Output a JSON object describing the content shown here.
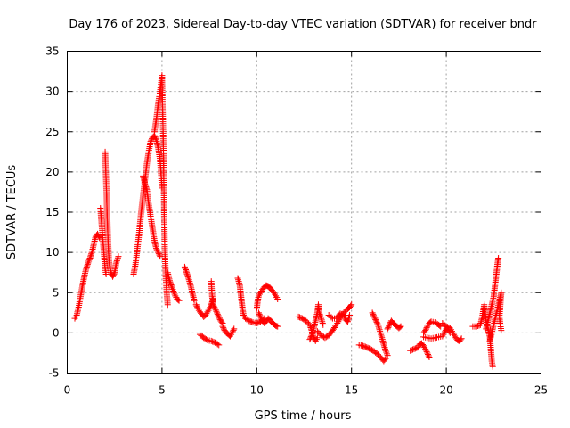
{
  "chart_data": {
    "type": "scatter",
    "title": "Day 176 of 2023, Sidereal Day-to-day VTEC variation (SDTVAR) for receiver bndr",
    "xlabel": "GPS time / hours",
    "ylabel": "SDTVAR / TECUs",
    "xlim": [
      0,
      25
    ],
    "ylim": [
      -5,
      35
    ],
    "xticks": [
      0,
      5,
      10,
      15,
      20,
      25
    ],
    "yticks": [
      -5,
      0,
      5,
      10,
      15,
      20,
      25,
      30,
      35
    ],
    "grid": true,
    "marker": "+",
    "series_color": "#ff0000",
    "segments": [
      [
        [
          0.4,
          1.8
        ],
        [
          0.5,
          2.2
        ],
        [
          0.6,
          3.2
        ],
        [
          0.7,
          4.5
        ],
        [
          0.8,
          5.8
        ],
        [
          0.9,
          7.0
        ],
        [
          1.0,
          8.0
        ],
        [
          1.1,
          8.7
        ],
        [
          1.2,
          9.3
        ],
        [
          1.3,
          10.0
        ],
        [
          1.4,
          11.0
        ],
        [
          1.5,
          12.0
        ],
        [
          1.6,
          12.3
        ],
        [
          1.7,
          11.8
        ]
      ],
      [
        [
          1.75,
          15.5
        ],
        [
          1.8,
          14.0
        ],
        [
          1.85,
          12.5
        ],
        [
          1.9,
          11.0
        ],
        [
          1.95,
          9.5
        ],
        [
          2.0,
          8.0
        ],
        [
          2.05,
          7.3
        ]
      ],
      [
        [
          2.0,
          22.5
        ],
        [
          2.02,
          21.0
        ],
        [
          2.05,
          19.0
        ],
        [
          2.08,
          17.0
        ],
        [
          2.1,
          15.0
        ],
        [
          2.13,
          13.0
        ],
        [
          2.16,
          11.0
        ],
        [
          2.2,
          9.0
        ],
        [
          2.3,
          7.5
        ],
        [
          2.4,
          7.0
        ],
        [
          2.5,
          7.5
        ],
        [
          2.6,
          8.8
        ],
        [
          2.7,
          9.5
        ]
      ],
      [
        [
          3.5,
          7.3
        ],
        [
          3.6,
          8.5
        ],
        [
          3.7,
          10.5
        ],
        [
          3.8,
          12.5
        ],
        [
          3.9,
          15.0
        ],
        [
          4.0,
          17.0
        ],
        [
          4.1,
          19.0
        ],
        [
          4.2,
          21.0
        ],
        [
          4.3,
          22.5
        ],
        [
          4.4,
          23.8
        ],
        [
          4.5,
          24.3
        ],
        [
          4.6,
          24.5
        ],
        [
          4.7,
          24.0
        ],
        [
          4.8,
          23.0
        ],
        [
          4.9,
          21.5
        ],
        [
          5.0,
          18.0
        ]
      ],
      [
        [
          4.0,
          19.5
        ],
        [
          4.1,
          18.5
        ],
        [
          4.2,
          17.8
        ],
        [
          4.3,
          16.0
        ],
        [
          4.4,
          14.5
        ],
        [
          4.5,
          13.0
        ],
        [
          4.6,
          11.5
        ],
        [
          4.7,
          10.5
        ],
        [
          4.8,
          10.0
        ],
        [
          4.9,
          9.5
        ]
      ],
      [
        [
          4.6,
          25.0
        ],
        [
          4.7,
          26.5
        ],
        [
          4.8,
          28.5
        ],
        [
          4.9,
          30.0
        ],
        [
          5.0,
          32.0
        ],
        [
          5.02,
          29.0
        ],
        [
          5.05,
          26.0
        ],
        [
          5.08,
          22.0
        ],
        [
          5.1,
          18.0
        ],
        [
          5.12,
          14.0
        ],
        [
          5.15,
          10.0
        ],
        [
          5.2,
          7.0
        ],
        [
          5.25,
          5.0
        ],
        [
          5.3,
          3.5
        ]
      ],
      [
        [
          5.3,
          7.5
        ],
        [
          5.4,
          6.5
        ],
        [
          5.5,
          5.8
        ],
        [
          5.6,
          5.2
        ],
        [
          5.7,
          4.6
        ],
        [
          5.8,
          4.2
        ],
        [
          5.9,
          4.0
        ]
      ],
      [
        [
          6.2,
          8.2
        ],
        [
          6.3,
          7.5
        ],
        [
          6.4,
          6.8
        ],
        [
          6.5,
          6.0
        ],
        [
          6.6,
          5.0
        ],
        [
          6.7,
          4.0
        ]
      ],
      [
        [
          6.8,
          3.5
        ],
        [
          6.9,
          3.0
        ],
        [
          7.0,
          2.6
        ],
        [
          7.1,
          2.3
        ],
        [
          7.2,
          2.0
        ],
        [
          7.3,
          2.2
        ],
        [
          7.4,
          2.6
        ],
        [
          7.5,
          3.0
        ],
        [
          7.6,
          3.5
        ],
        [
          7.7,
          4.2
        ]
      ],
      [
        [
          7.0,
          -0.2
        ],
        [
          7.2,
          -0.6
        ],
        [
          7.4,
          -0.9
        ],
        [
          7.6,
          -1.0
        ],
        [
          7.8,
          -1.2
        ],
        [
          8.0,
          -1.5
        ]
      ],
      [
        [
          7.6,
          6.4
        ],
        [
          7.62,
          5.5
        ],
        [
          7.65,
          4.5
        ],
        [
          7.7,
          3.5
        ],
        [
          7.8,
          3.0
        ],
        [
          7.9,
          2.5
        ],
        [
          8.0,
          2.0
        ],
        [
          8.1,
          1.5
        ],
        [
          8.2,
          1.2
        ]
      ],
      [
        [
          8.2,
          0.8
        ],
        [
          8.3,
          0.3
        ],
        [
          8.4,
          0.0
        ],
        [
          8.5,
          -0.2
        ],
        [
          8.6,
          -0.4
        ],
        [
          8.7,
          0.0
        ],
        [
          8.8,
          0.5
        ]
      ],
      [
        [
          9.0,
          6.8
        ],
        [
          9.1,
          6.0
        ],
        [
          9.15,
          5.0
        ],
        [
          9.2,
          4.0
        ],
        [
          9.25,
          3.0
        ],
        [
          9.3,
          2.2
        ],
        [
          9.4,
          1.8
        ],
        [
          9.6,
          1.5
        ],
        [
          9.8,
          1.3
        ],
        [
          10.0,
          1.2
        ],
        [
          10.2,
          1.4
        ],
        [
          10.4,
          1.8
        ]
      ],
      [
        [
          10.0,
          3.0
        ],
        [
          10.05,
          4.0
        ],
        [
          10.1,
          4.6
        ],
        [
          10.2,
          5.0
        ],
        [
          10.3,
          5.4
        ],
        [
          10.4,
          5.7
        ],
        [
          10.5,
          5.9
        ],
        [
          10.6,
          5.8
        ],
        [
          10.7,
          5.6
        ],
        [
          10.8,
          5.3
        ],
        [
          10.9,
          5.0
        ],
        [
          11.0,
          4.6
        ],
        [
          11.1,
          4.2
        ]
      ],
      [
        [
          10.1,
          2.5
        ],
        [
          10.2,
          2.0
        ],
        [
          10.3,
          1.5
        ],
        [
          10.4,
          1.2
        ],
        [
          10.5,
          1.5
        ],
        [
          10.6,
          1.8
        ],
        [
          10.7,
          1.6
        ],
        [
          10.8,
          1.3
        ],
        [
          10.9,
          1.1
        ],
        [
          11.0,
          0.9
        ],
        [
          11.1,
          0.8
        ]
      ],
      [
        [
          12.2,
          2.0
        ],
        [
          12.4,
          1.8
        ],
        [
          12.6,
          1.5
        ],
        [
          12.8,
          1.0
        ],
        [
          12.9,
          0.3
        ],
        [
          13.0,
          -0.5
        ],
        [
          13.1,
          -1.0
        ],
        [
          13.2,
          -0.6
        ]
      ],
      [
        [
          12.8,
          -0.8
        ],
        [
          12.9,
          -0.3
        ],
        [
          13.0,
          0.5
        ],
        [
          13.1,
          1.5
        ],
        [
          13.2,
          2.5
        ],
        [
          13.25,
          3.5
        ],
        [
          13.3,
          2.5
        ],
        [
          13.4,
          1.8
        ],
        [
          13.5,
          1.0
        ]
      ],
      [
        [
          13.2,
          0.2
        ],
        [
          13.4,
          -0.3
        ],
        [
          13.6,
          -0.6
        ],
        [
          13.8,
          -0.3
        ],
        [
          14.0,
          0.3
        ],
        [
          14.2,
          1.0
        ],
        [
          14.4,
          1.8
        ],
        [
          14.6,
          2.5
        ],
        [
          14.8,
          3.0
        ],
        [
          14.9,
          3.2
        ],
        [
          15.0,
          3.5
        ]
      ],
      [
        [
          13.8,
          2.2
        ],
        [
          14.0,
          1.8
        ],
        [
          14.2,
          1.8
        ],
        [
          14.4,
          2.4
        ],
        [
          14.6,
          2.2
        ],
        [
          14.7,
          1.6
        ],
        [
          14.8,
          1.4
        ],
        [
          14.9,
          2.2
        ]
      ],
      [
        [
          15.4,
          -1.5
        ],
        [
          15.6,
          -1.6
        ],
        [
          15.8,
          -1.8
        ],
        [
          16.0,
          -2.0
        ],
        [
          16.2,
          -2.3
        ],
        [
          16.4,
          -2.7
        ],
        [
          16.6,
          -3.2
        ],
        [
          16.7,
          -3.5
        ],
        [
          16.8,
          -3.2
        ]
      ],
      [
        [
          16.1,
          2.5
        ],
        [
          16.2,
          2.0
        ],
        [
          16.3,
          1.5
        ],
        [
          16.4,
          1.0
        ],
        [
          16.5,
          0.2
        ],
        [
          16.6,
          -0.6
        ],
        [
          16.7,
          -1.4
        ],
        [
          16.8,
          -2.2
        ],
        [
          16.9,
          -2.8
        ]
      ],
      [
        [
          16.9,
          0.5
        ],
        [
          17.0,
          1.0
        ],
        [
          17.1,
          1.5
        ],
        [
          17.2,
          1.2
        ],
        [
          17.3,
          1.0
        ],
        [
          17.4,
          0.8
        ],
        [
          17.5,
          0.6
        ],
        [
          17.6,
          0.8
        ]
      ],
      [
        [
          18.1,
          -2.2
        ],
        [
          18.3,
          -2.0
        ],
        [
          18.5,
          -1.8
        ],
        [
          18.6,
          -1.4
        ],
        [
          18.7,
          -1.3
        ],
        [
          18.8,
          -1.6
        ],
        [
          18.9,
          -2.0
        ],
        [
          19.0,
          -2.5
        ],
        [
          19.1,
          -3.0
        ]
      ],
      [
        [
          18.8,
          0.0
        ],
        [
          18.9,
          0.3
        ],
        [
          19.0,
          0.8
        ],
        [
          19.1,
          1.2
        ],
        [
          19.2,
          1.4
        ],
        [
          19.4,
          1.3
        ],
        [
          19.6,
          1.0
        ],
        [
          19.7,
          0.8
        ]
      ],
      [
        [
          18.8,
          -0.5
        ],
        [
          19.0,
          -0.6
        ],
        [
          19.2,
          -0.7
        ],
        [
          19.4,
          -0.6
        ],
        [
          19.6,
          -0.5
        ],
        [
          19.8,
          -0.4
        ],
        [
          19.9,
          0.0
        ],
        [
          20.0,
          0.5
        ],
        [
          20.1,
          0.3
        ],
        [
          20.2,
          0.0
        ]
      ],
      [
        [
          19.8,
          1.2
        ],
        [
          20.0,
          0.8
        ],
        [
          20.2,
          0.6
        ],
        [
          20.3,
          0.2
        ],
        [
          20.4,
          -0.2
        ],
        [
          20.5,
          -0.6
        ],
        [
          20.6,
          -0.9
        ],
        [
          20.7,
          -1.0
        ],
        [
          20.8,
          -0.7
        ]
      ],
      [
        [
          21.4,
          0.8
        ],
        [
          21.6,
          0.8
        ],
        [
          21.8,
          1.0
        ],
        [
          21.9,
          2.0
        ],
        [
          22.0,
          3.5
        ],
        [
          22.05,
          2.5
        ],
        [
          22.1,
          1.5
        ],
        [
          22.2,
          0.5
        ],
        [
          22.3,
          -0.5
        ],
        [
          22.35,
          -2.0
        ],
        [
          22.4,
          -3.5
        ],
        [
          22.45,
          -4.2
        ]
      ],
      [
        [
          22.1,
          0.5
        ],
        [
          22.2,
          1.5
        ],
        [
          22.3,
          2.5
        ],
        [
          22.4,
          3.5
        ],
        [
          22.5,
          4.5
        ],
        [
          22.55,
          5.5
        ],
        [
          22.6,
          6.5
        ],
        [
          22.65,
          7.5
        ],
        [
          22.7,
          8.5
        ],
        [
          22.75,
          9.3
        ]
      ],
      [
        [
          22.3,
          -1.0
        ],
        [
          22.4,
          0.0
        ],
        [
          22.5,
          1.0
        ],
        [
          22.6,
          2.0
        ],
        [
          22.7,
          3.0
        ],
        [
          22.8,
          4.0
        ],
        [
          22.9,
          5.0
        ],
        [
          22.85,
          3.5
        ],
        [
          22.8,
          2.0
        ],
        [
          22.85,
          1.0
        ],
        [
          22.9,
          0.3
        ]
      ]
    ]
  }
}
